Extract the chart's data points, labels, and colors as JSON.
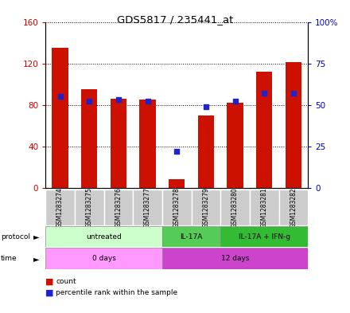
{
  "title": "GDS5817 / 235441_at",
  "samples": [
    "GSM1283274",
    "GSM1283275",
    "GSM1283276",
    "GSM1283277",
    "GSM1283278",
    "GSM1283279",
    "GSM1283280",
    "GSM1283281",
    "GSM1283282"
  ],
  "counts": [
    135,
    95,
    86,
    85,
    8,
    70,
    82,
    112,
    121
  ],
  "percentile_ranks": [
    55,
    52,
    53,
    52,
    22,
    49,
    52,
    57,
    57
  ],
  "left_ylim": [
    0,
    160
  ],
  "right_ylim": [
    0,
    100
  ],
  "left_yticks": [
    0,
    40,
    80,
    120,
    160
  ],
  "right_yticks": [
    0,
    25,
    50,
    75,
    100
  ],
  "right_yticklabels": [
    "0",
    "25",
    "50",
    "75",
    "100%"
  ],
  "bar_color": "#cc1100",
  "dot_color": "#2222cc",
  "protocol_groups": [
    {
      "label": "untreated",
      "start": 0,
      "end": 4,
      "color": "#ccffcc"
    },
    {
      "label": "IL-17A",
      "start": 4,
      "end": 6,
      "color": "#55cc55"
    },
    {
      "label": "IL-17A + IFN-g",
      "start": 6,
      "end": 9,
      "color": "#33bb33"
    }
  ],
  "time_groups": [
    {
      "label": "0 days",
      "start": 0,
      "end": 4,
      "color": "#ff99ff"
    },
    {
      "label": "12 days",
      "start": 4,
      "end": 9,
      "color": "#cc44cc"
    }
  ],
  "bg_color": "#ffffff",
  "tick_color_left": "#cc0000",
  "tick_color_right": "#0000cc",
  "bar_width": 0.55
}
